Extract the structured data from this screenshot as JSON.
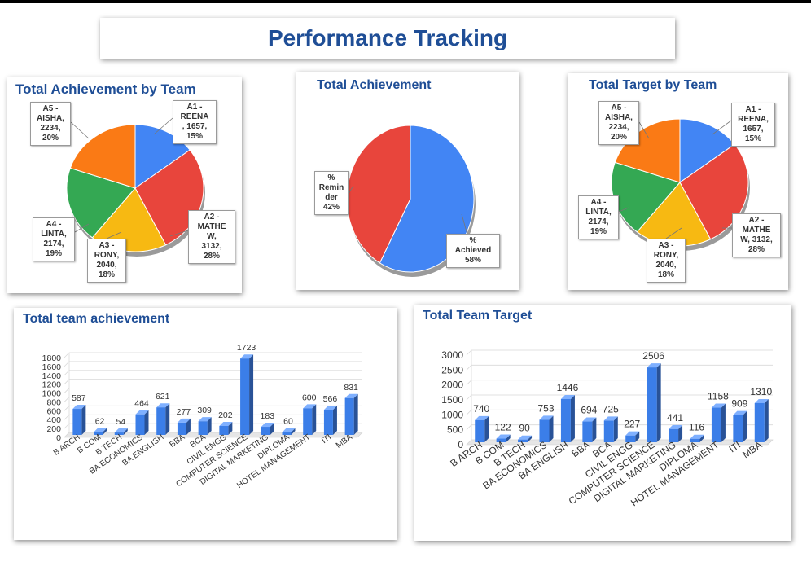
{
  "page_title": "Performance Tracking",
  "colors": {
    "blue": "#4285f4",
    "red": "#e8453c",
    "yellow": "#f7b912",
    "green": "#34a853",
    "orange": "#fa7a15",
    "title": "#1f4e96"
  },
  "chart_data": [
    {
      "id": "team_achievement_pie",
      "type": "pie",
      "title": "Total Achievement by Team",
      "slices": [
        {
          "label": "A1 - REENA",
          "value": 1657,
          "percent": "15%",
          "color": "#4285f4",
          "text": [
            "A1 -",
            "REENA",
            ", 1657,",
            "15%"
          ]
        },
        {
          "label": "A2 - MATHEW",
          "value": 3132,
          "percent": "28%",
          "color": "#e8453c",
          "text": [
            "A2 -",
            "MATHE",
            "W,",
            "3132,",
            "28%"
          ]
        },
        {
          "label": "A3 - RONY",
          "value": 2040,
          "percent": "18%",
          "color": "#f7b912",
          "text": [
            "A3 -",
            "RONY,",
            "2040,",
            "18%"
          ]
        },
        {
          "label": "A4 - LINTA",
          "value": 2174,
          "percent": "19%",
          "color": "#34a853",
          "text": [
            "A4 -",
            "LINTA,",
            "2174,",
            "19%"
          ]
        },
        {
          "label": "A5 - AISHA",
          "value": 2234,
          "percent": "20%",
          "color": "#fa7a15",
          "text": [
            "A5 -",
            "AISHA,",
            "2234,",
            "20%"
          ]
        }
      ]
    },
    {
      "id": "total_achievement_pie",
      "type": "pie",
      "title": "Total Achievement",
      "slices": [
        {
          "label": "% Achieved",
          "value": 58,
          "percent": "58%",
          "color": "#4285f4",
          "text": [
            "%",
            "Achieved",
            "58%"
          ]
        },
        {
          "label": "% Reminder",
          "value": 42,
          "percent": "42%",
          "color": "#e8453c",
          "text": [
            "%",
            "Remin",
            "der",
            "42%"
          ]
        }
      ]
    },
    {
      "id": "team_target_pie",
      "type": "pie",
      "title": "Total Target by Team",
      "slices": [
        {
          "label": "A1 - REENA",
          "value": 1657,
          "percent": "15%",
          "color": "#4285f4",
          "text": [
            "A1 -",
            "REENA,",
            "1657,",
            "15%"
          ]
        },
        {
          "label": "A2 - MATHEW",
          "value": 3132,
          "percent": "28%",
          "color": "#e8453c",
          "text": [
            "A2 -",
            "MATHE",
            "W, 3132,",
            "28%"
          ]
        },
        {
          "label": "A3 - RONY",
          "value": 2040,
          "percent": "18%",
          "color": "#f7b912",
          "text": [
            "A3 -",
            "RONY,",
            "2040,",
            "18%"
          ]
        },
        {
          "label": "A4 - LINTA",
          "value": 2174,
          "percent": "19%",
          "color": "#34a853",
          "text": [
            "A4 -",
            "LINTA,",
            "2174,",
            "19%"
          ]
        },
        {
          "label": "A5 - AISHA",
          "value": 2234,
          "percent": "20%",
          "color": "#fa7a15",
          "text": [
            "A5 -",
            "AISHA,",
            "2234,",
            "20%"
          ]
        }
      ]
    },
    {
      "id": "team_achievement_bar",
      "type": "bar",
      "title": "Total team achievement",
      "categories": [
        "B ARCH",
        "B COM",
        "B TECH",
        "BA ECONOMICS",
        "BA ENGLISH",
        "BBA",
        "BCA",
        "CIVIL ENGG",
        "COMPUTER SCIENCE",
        "DIGITAL MARKETING",
        "DIPLOMA",
        "HOTEL MANAGEMENT",
        "ITI",
        "MBA"
      ],
      "values": [
        587,
        62,
        54,
        464,
        621,
        277,
        309,
        202,
        1723,
        183,
        60,
        600,
        566,
        831
      ],
      "yticks": [
        0,
        200,
        400,
        600,
        800,
        1000,
        1200,
        1400,
        1600,
        1800
      ],
      "ylim": [
        0,
        1800
      ]
    },
    {
      "id": "team_target_bar",
      "type": "bar",
      "title": "Total Team Target",
      "categories": [
        "B ARCH",
        "B COM",
        "B TECH",
        "BA ECONOMICS",
        "BA ENGLISH",
        "BBA",
        "BCA",
        "CIVIL ENGG",
        "COMPUTER SCIENCE",
        "DIGITAL MARKETING",
        "DIPLOMA",
        "HOTEL MANAGEMENT",
        "ITI",
        "MBA"
      ],
      "values": [
        740,
        122,
        90,
        753,
        1446,
        694,
        725,
        227,
        2506,
        441,
        116,
        1158,
        909,
        1310
      ],
      "yticks": [
        0,
        500,
        1000,
        1500,
        2000,
        2500,
        3000
      ],
      "ylim": [
        0,
        3000
      ]
    }
  ]
}
